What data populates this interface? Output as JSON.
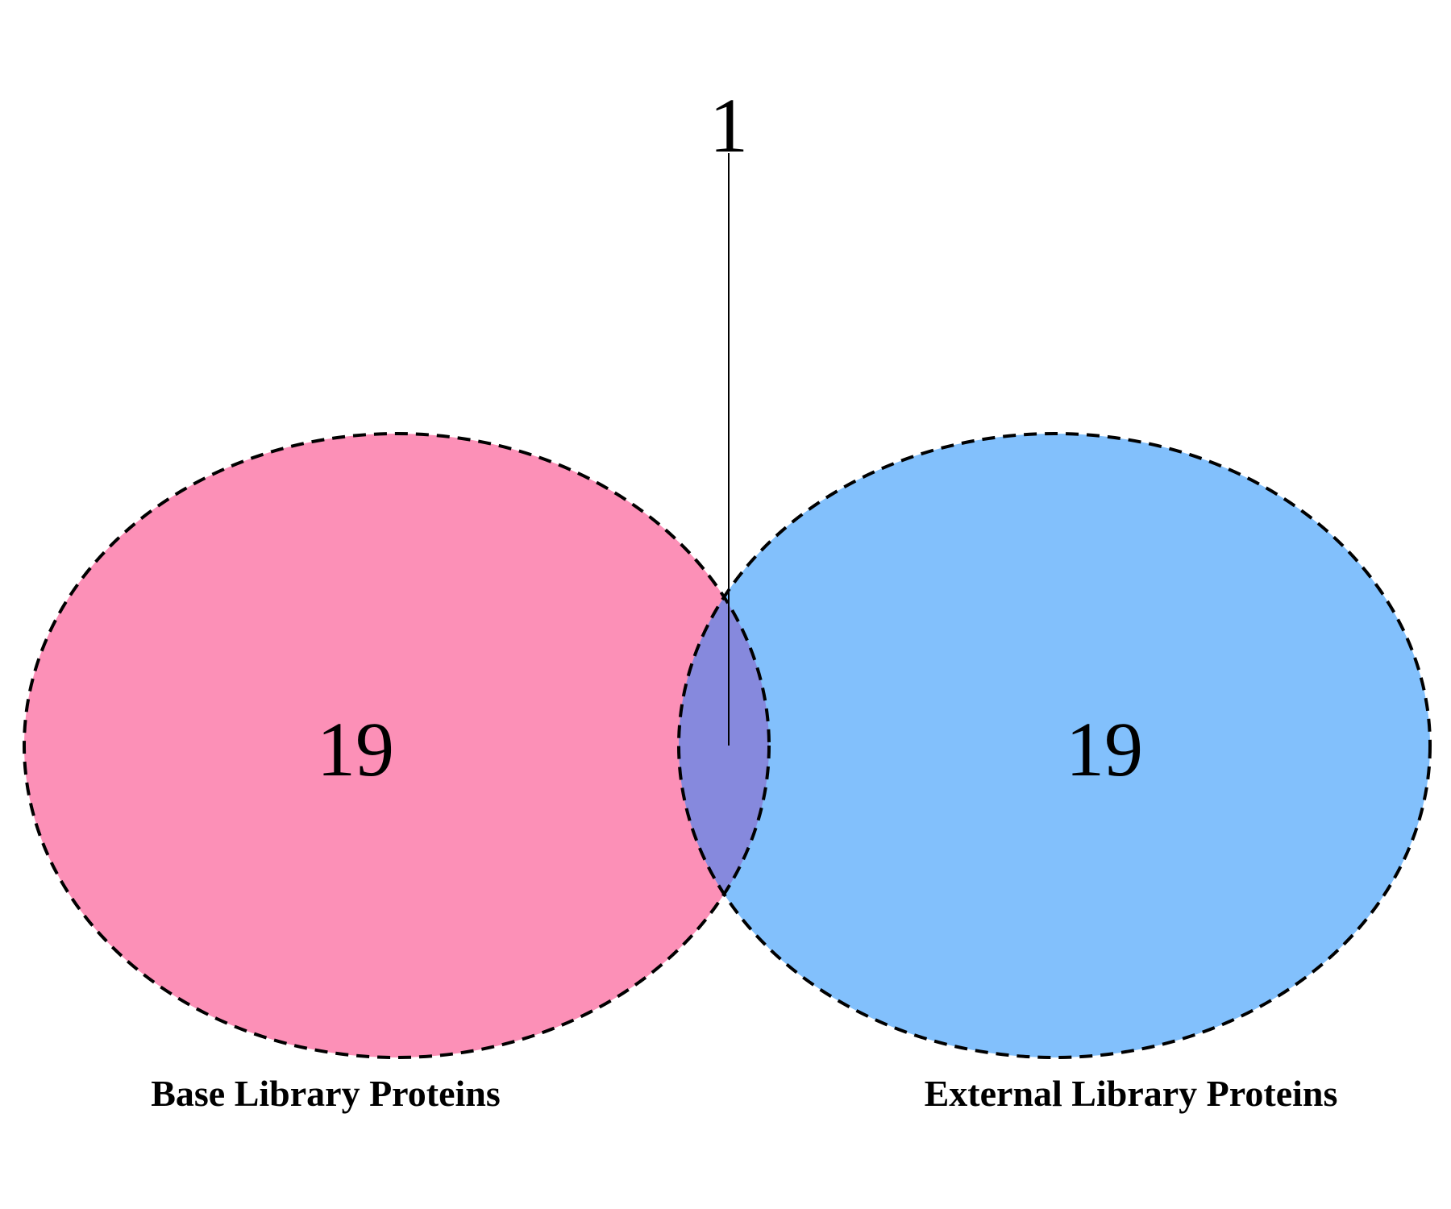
{
  "venn": {
    "sets": [
      {
        "name": "Base Library Proteins",
        "count": "19",
        "color": "#fc90b7"
      },
      {
        "name": "External Library Proteins",
        "count": "19",
        "color": "#82c0fc"
      }
    ],
    "intersection": {
      "count": "1",
      "color": "#8689dd"
    },
    "outline_style": "dashed"
  }
}
